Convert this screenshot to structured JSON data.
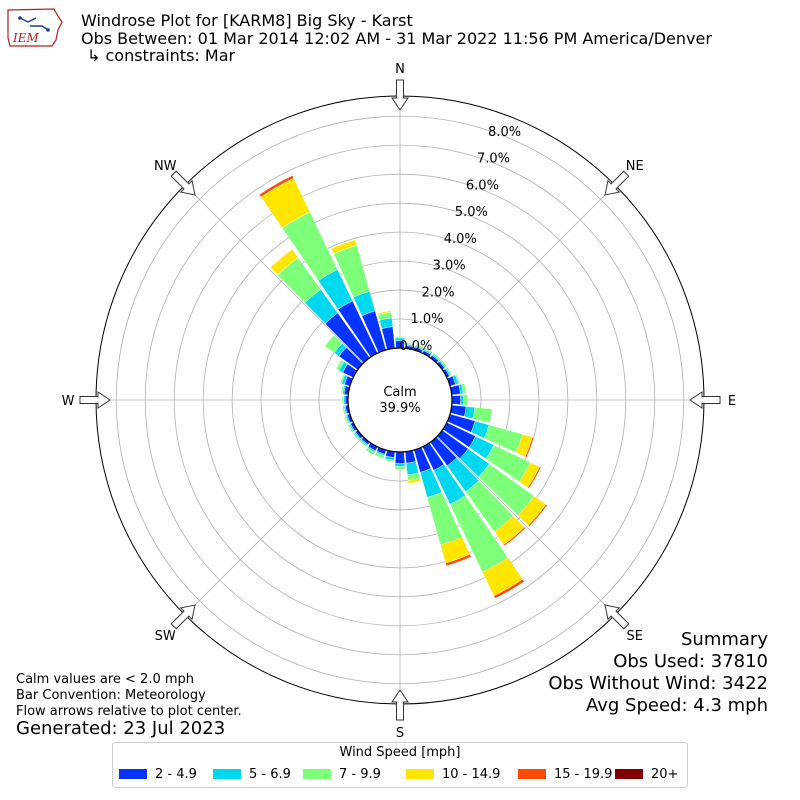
{
  "header": {
    "logo_text": "IEM",
    "title": "Windrose Plot for [KARM8] Big Sky - Karst",
    "obs_between": "Obs Between: 01 Mar 2014 12:02 AM - 31 Mar 2022 11:56 PM America/Denver",
    "constraints": "↳ constraints: Mar"
  },
  "chart_data": {
    "type": "windrose",
    "direction_labels": [
      "N",
      "NE",
      "E",
      "SE",
      "S",
      "SW",
      "W",
      "NW"
    ],
    "radial_tick_labels": [
      "0.0%",
      "1.0%",
      "2.0%",
      "3.0%",
      "4.0%",
      "5.0%",
      "6.0%",
      "7.0%",
      "8.0%"
    ],
    "calm_label": "Calm",
    "calm_value": "39.9%",
    "speed_bins": [
      {
        "label": "2 - 4.9",
        "color": "#0433ff"
      },
      {
        "label": "5 - 6.9",
        "color": "#00d8f0"
      },
      {
        "label": "7 - 9.9",
        "color": "#7dff7a"
      },
      {
        "label": "10 - 14.9",
        "color": "#ffe600"
      },
      {
        "label": "15 - 19.9",
        "color": "#ff4a00"
      },
      {
        "label": "20+",
        "color": "#800000"
      }
    ],
    "directions_deg": [
      0,
      10,
      20,
      30,
      40,
      50,
      60,
      70,
      80,
      90,
      100,
      110,
      120,
      130,
      140,
      150,
      160,
      170,
      180,
      190,
      200,
      210,
      220,
      230,
      240,
      250,
      260,
      270,
      280,
      290,
      300,
      310,
      320,
      330,
      340,
      350
    ],
    "cumulative_percent": [
      [
        0.25,
        0.35,
        0.4,
        0.4,
        0.4,
        0.4
      ],
      [
        0.1,
        0.15,
        0.2,
        0.2,
        0.2,
        0.2
      ],
      [
        0.1,
        0.15,
        0.2,
        0.2,
        0.2,
        0.2
      ],
      [
        0.1,
        0.15,
        0.2,
        0.2,
        0.2,
        0.2
      ],
      [
        0.1,
        0.15,
        0.2,
        0.2,
        0.2,
        0.2
      ],
      [
        0.1,
        0.15,
        0.2,
        0.2,
        0.2,
        0.2
      ],
      [
        0.1,
        0.15,
        0.2,
        0.2,
        0.2,
        0.2
      ],
      [
        0.2,
        0.3,
        0.35,
        0.35,
        0.35,
        0.35
      ],
      [
        0.3,
        0.4,
        0.5,
        0.5,
        0.5,
        0.5
      ],
      [
        0.3,
        0.4,
        0.55,
        0.55,
        0.55,
        0.55
      ],
      [
        0.5,
        0.8,
        1.4,
        1.4,
        1.4,
        1.4
      ],
      [
        0.9,
        1.4,
        2.6,
        2.95,
        3.0,
        3.0
      ],
      [
        1.1,
        1.8,
        3.2,
        3.55,
        3.6,
        3.6
      ],
      [
        1.1,
        2.0,
        3.9,
        4.4,
        4.45,
        4.45
      ],
      [
        1.0,
        2.1,
        3.8,
        4.35,
        4.4,
        4.4
      ],
      [
        0.9,
        2.2,
        4.8,
        5.7,
        5.8,
        5.8
      ],
      [
        0.8,
        1.7,
        3.4,
        4.05,
        4.15,
        4.15
      ],
      [
        0.4,
        0.8,
        1.0,
        1.1,
        1.1,
        1.1
      ],
      [
        0.4,
        0.5,
        0.6,
        0.6,
        0.6,
        0.6
      ],
      [
        0.2,
        0.3,
        0.35,
        0.35,
        0.35,
        0.35
      ],
      [
        0.15,
        0.2,
        0.3,
        0.3,
        0.3,
        0.3
      ],
      [
        0.15,
        0.2,
        0.3,
        0.3,
        0.3,
        0.3
      ],
      [
        0.1,
        0.15,
        0.2,
        0.2,
        0.2,
        0.2
      ],
      [
        0.1,
        0.15,
        0.2,
        0.2,
        0.2,
        0.2
      ],
      [
        0.1,
        0.15,
        0.2,
        0.2,
        0.2,
        0.2
      ],
      [
        0.1,
        0.15,
        0.2,
        0.2,
        0.2,
        0.2
      ],
      [
        0.1,
        0.15,
        0.2,
        0.2,
        0.2,
        0.2
      ],
      [
        0.1,
        0.15,
        0.2,
        0.2,
        0.2,
        0.2
      ],
      [
        0.15,
        0.2,
        0.25,
        0.25,
        0.25,
        0.25
      ],
      [
        0.2,
        0.3,
        0.35,
        0.35,
        0.35,
        0.35
      ],
      [
        0.4,
        0.55,
        0.65,
        0.65,
        0.65,
        0.65
      ],
      [
        0.8,
        1.0,
        1.4,
        1.4,
        1.4,
        1.4
      ],
      [
        1.9,
        2.9,
        4.25,
        4.6,
        4.6,
        4.6
      ],
      [
        2.0,
        3.2,
        5.4,
        6.7,
        6.8,
        6.8
      ],
      [
        1.4,
        2.1,
        3.75,
        3.95,
        3.95,
        3.95
      ],
      [
        0.75,
        1.05,
        1.25,
        1.3,
        1.3,
        1.3
      ]
    ],
    "rmax": 8.7
  },
  "footer": {
    "notes": [
      "Calm values are < 2.0 mph",
      "Bar Convention: Meteorology",
      "Flow arrows relative to plot center."
    ],
    "generated": "Generated: 23 Jul 2023"
  },
  "summary": {
    "title": "Summary",
    "obs_used": "Obs Used: 37810",
    "obs_without_wind": "Obs Without Wind: 3422",
    "avg_speed": "Avg Speed: 4.3 mph"
  },
  "legend": {
    "title": "Wind Speed [mph]"
  }
}
